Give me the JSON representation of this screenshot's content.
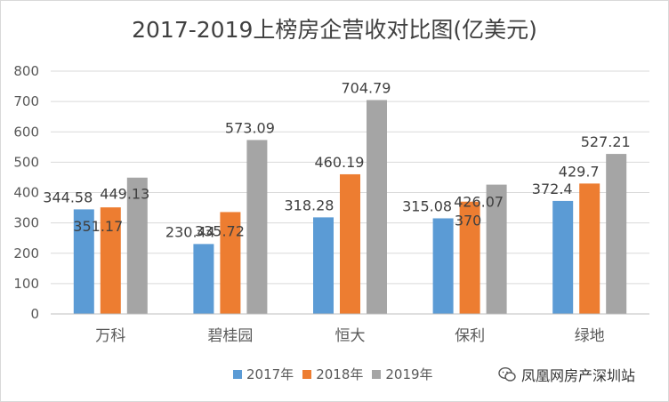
{
  "chart_data": {
    "type": "bar",
    "title": "2017-2019上榜房企营收对比图(亿美元)",
    "categories": [
      "万科",
      "碧桂园",
      "恒大",
      "保利",
      "绿地"
    ],
    "series": [
      {
        "name": "2017年",
        "color": "#5b9bd5",
        "values": [
          344.58,
          230.44,
          318.28,
          315.08,
          372.4
        ],
        "labels": [
          "344.58",
          "230.44",
          "318.28",
          "315.08",
          "372.4"
        ]
      },
      {
        "name": "2018年",
        "color": "#ed7d31",
        "values": [
          351.17,
          335.72,
          460.19,
          370,
          429.7
        ],
        "labels": [
          "351.17",
          "335.72",
          "460.19",
          "370",
          "429.7"
        ]
      },
      {
        "name": "2019年",
        "color": "#a5a5a5",
        "values": [
          449.13,
          573.09,
          704.79,
          426.07,
          527.21
        ],
        "labels": [
          "449.13",
          "573.09",
          "704.79",
          "426.07",
          "527.21"
        ]
      }
    ],
    "ylim": [
      0,
      800
    ],
    "yticks": [
      0,
      100,
      200,
      300,
      400,
      500,
      600,
      700,
      800
    ],
    "grid": true,
    "legend_position": "bottom",
    "xlabel": "",
    "ylabel": ""
  },
  "watermark": {
    "text": "凤凰网房产深圳站",
    "icon": "wechat-icon"
  }
}
